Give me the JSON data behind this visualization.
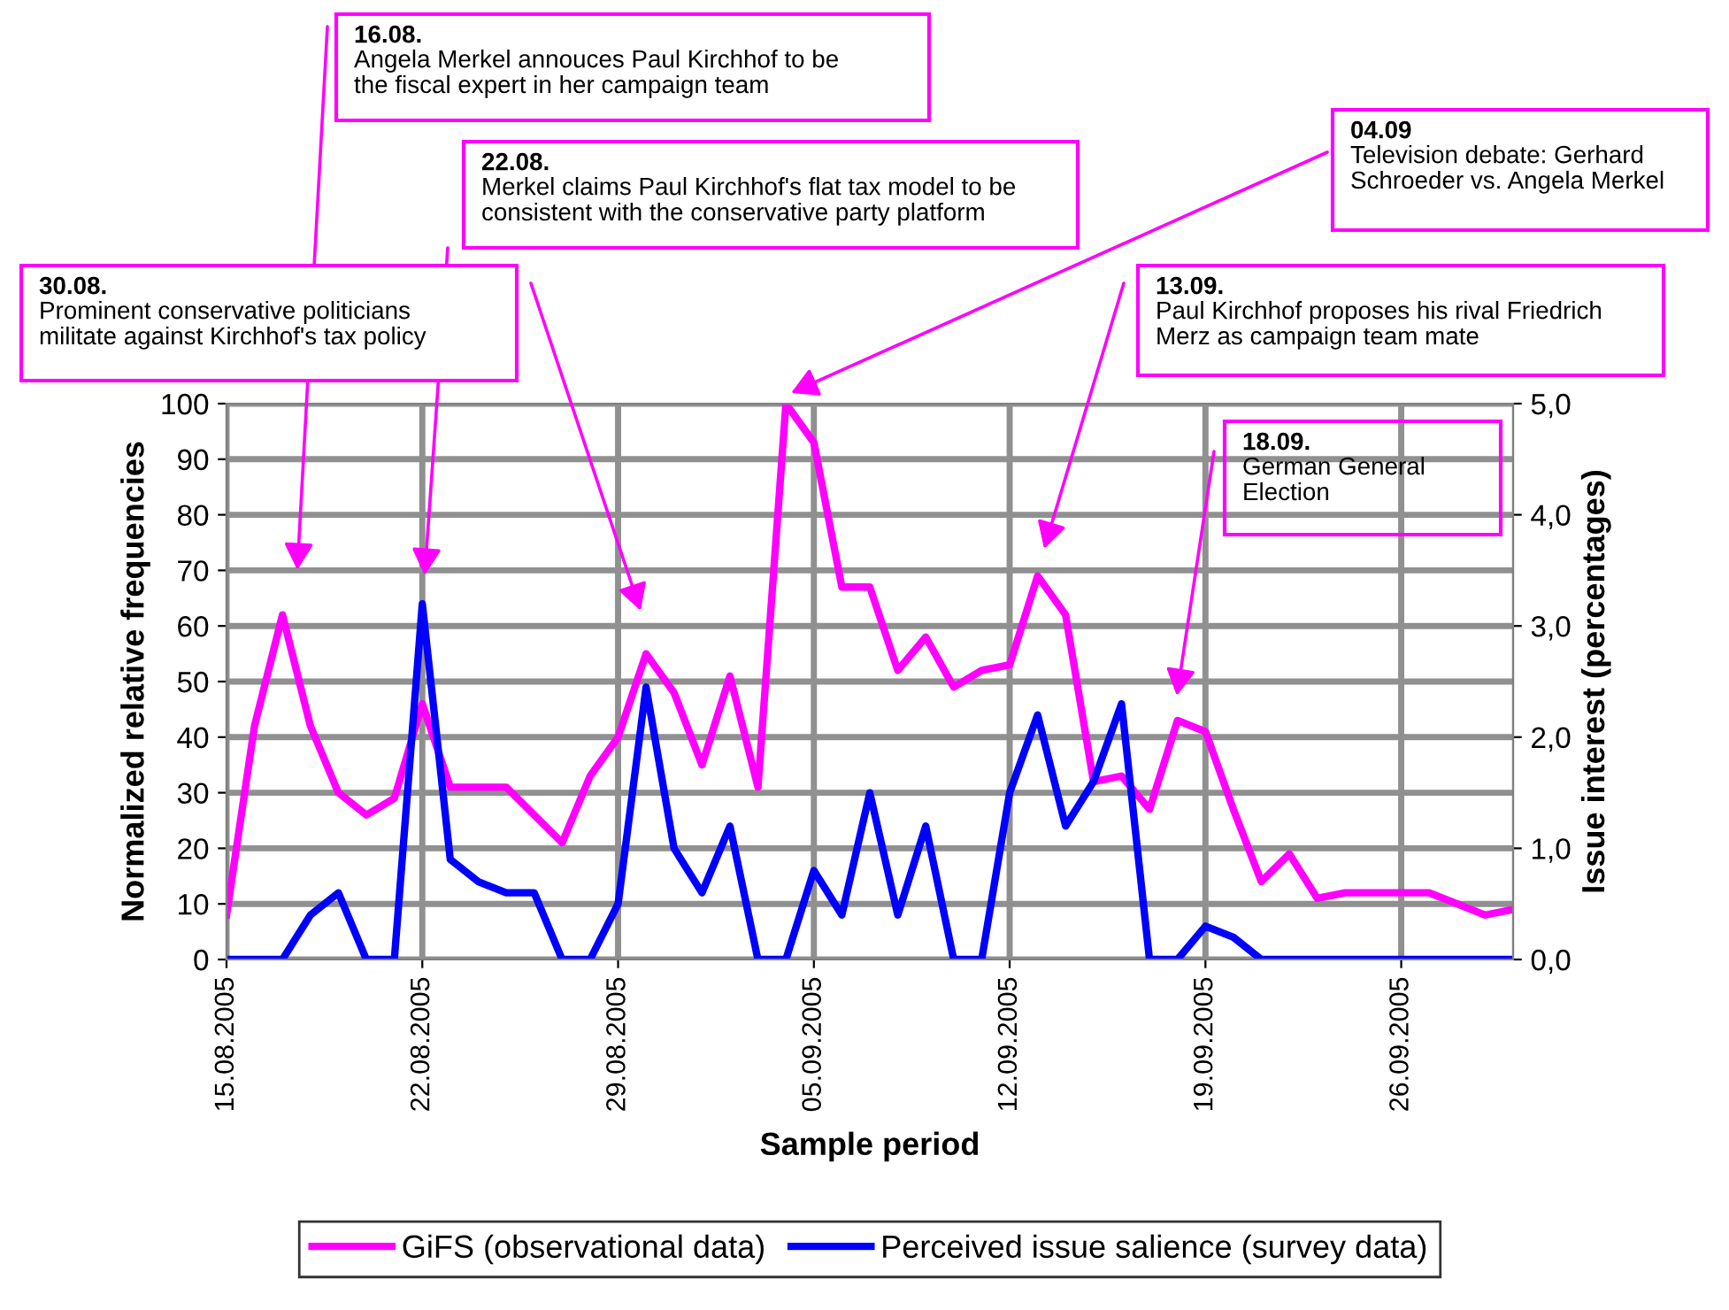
{
  "chart_data": {
    "type": "line",
    "xlabel": "Sample period",
    "ylabel": "Normalized relative frequencies",
    "y2label": "Issue interest (percentages)",
    "x": [
      "2005-08-15",
      "2005-08-16",
      "2005-08-17",
      "2005-08-18",
      "2005-08-19",
      "2005-08-20",
      "2005-08-21",
      "2005-08-22",
      "2005-08-23",
      "2005-08-24",
      "2005-08-25",
      "2005-08-26",
      "2005-08-27",
      "2005-08-28",
      "2005-08-29",
      "2005-08-30",
      "2005-08-31",
      "2005-09-01",
      "2005-09-02",
      "2005-09-03",
      "2005-09-04",
      "2005-09-05",
      "2005-09-06",
      "2005-09-07",
      "2005-09-08",
      "2005-09-09",
      "2005-09-10",
      "2005-09-11",
      "2005-09-12",
      "2005-09-13",
      "2005-09-14",
      "2005-09-15",
      "2005-09-16",
      "2005-09-17",
      "2005-09-18",
      "2005-09-19",
      "2005-09-20",
      "2005-09-21",
      "2005-09-22",
      "2005-09-23",
      "2005-09-24",
      "2005-09-25",
      "2005-09-26",
      "2005-09-27",
      "2005-09-28",
      "2005-09-29",
      "2005-09-30"
    ],
    "series": [
      {
        "name": "GiFS (observational data)",
        "color": "#ff00ff",
        "values": [
          8,
          42,
          62,
          42,
          30,
          26,
          29,
          46,
          31,
          31,
          31,
          26,
          21,
          33,
          40,
          55,
          48,
          35,
          51,
          31,
          100,
          93,
          67,
          67,
          52,
          58,
          49,
          52,
          53,
          69,
          62,
          32,
          33,
          27,
          43,
          41,
          27,
          14,
          19,
          11,
          12,
          12,
          12,
          12,
          10,
          8,
          9
        ]
      },
      {
        "name": "Perceived issue salience (survey data)",
        "color": "#0000ff",
        "axis": "y2",
        "values": [
          0,
          0,
          0,
          0.4,
          0.6,
          0,
          0,
          3.2,
          0.9,
          0.7,
          0.6,
          0.6,
          0,
          0,
          0.5,
          2.45,
          1.0,
          0.6,
          1.2,
          0,
          0,
          0.8,
          0.4,
          1.5,
          0.4,
          1.2,
          0,
          0,
          1.5,
          2.2,
          1.2,
          1.6,
          2.3,
          0,
          0,
          0.3,
          0.2,
          0,
          0,
          0,
          0,
          0,
          0,
          0,
          0,
          0,
          0
        ]
      }
    ],
    "xlim": [
      "2005-08-15",
      "2005-09-30"
    ],
    "xticks": [
      {
        "value": "2005-08-15",
        "label": "15.08.2005"
      },
      {
        "value": "2005-08-22",
        "label": "22.08.2005"
      },
      {
        "value": "2005-08-29",
        "label": "29.08.2005"
      },
      {
        "value": "2005-09-05",
        "label": "05.09.2005"
      },
      {
        "value": "2005-09-12",
        "label": "12.09.2005"
      },
      {
        "value": "2005-09-19",
        "label": "19.09.2005"
      },
      {
        "value": "2005-09-26",
        "label": "26.09.2005"
      }
    ],
    "ylim": [
      0,
      100
    ],
    "yticks": [
      0,
      10,
      20,
      30,
      40,
      50,
      60,
      70,
      80,
      90,
      100
    ],
    "y2lim": [
      0,
      5
    ],
    "y2ticks": [
      {
        "value": 0,
        "label": "0,0"
      },
      {
        "value": 1,
        "label": "1,0"
      },
      {
        "value": 2,
        "label": "2,0"
      },
      {
        "value": 3,
        "label": "3,0"
      },
      {
        "value": 4,
        "label": "4,0"
      },
      {
        "value": 5,
        "label": "5,0"
      }
    ],
    "grid": true,
    "legend": "bottom",
    "marker": "none",
    "line_style": "solid",
    "annotations": [
      "16.08.\nAngela Merkel annouces Paul Kirchhof to be\nthe fiscal expert in her campaign team",
      "22.08.\nMerkel claims Paul Kirchhof's flat tax model to be\nconsistent with the conservative party platform",
      "30.08.\nProminent conservative politicians\nmilitate against Kirchhof's tax policy",
      "04.09\nTelevision debate: Gerhard\nSchroeder vs. Angela Merkel",
      "13.09.\nPaul Kirchhof proposes his rival Friedrich\nMerz as campaign team mate",
      "18.09.\nGerman General\nElection"
    ]
  }
}
